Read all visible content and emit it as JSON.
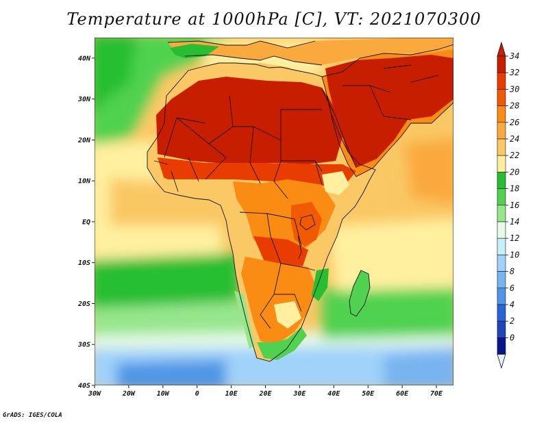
{
  "title": "Temperature at 1000hPa [C], VT: 2021070300",
  "credit": "GrADS: IGES/COLA",
  "map": {
    "lat_labels": [
      "40N",
      "30N",
      "20N",
      "10N",
      "EQ",
      "10S",
      "20S",
      "30S",
      "40S"
    ],
    "lat_values": [
      40,
      30,
      20,
      10,
      0,
      -10,
      -20,
      -30,
      -40
    ],
    "lon_labels": [
      "30W",
      "20W",
      "10W",
      "0",
      "10E",
      "20E",
      "30E",
      "40E",
      "50E",
      "60E",
      "70E"
    ],
    "lon_values": [
      -30,
      -20,
      -10,
      0,
      10,
      20,
      30,
      40,
      50,
      60,
      70
    ],
    "lon_range": [
      -30,
      75
    ],
    "lat_range": [
      -40,
      45
    ],
    "variable": "temperature",
    "level": "1000hPa",
    "units": "C",
    "valid_time": "2021070300"
  },
  "colorbar": {
    "levels": [
      34,
      32,
      30,
      28,
      26,
      24,
      22,
      20,
      18,
      16,
      14,
      12,
      10,
      8,
      6,
      4,
      2,
      0
    ],
    "colors": [
      "#c81e00",
      "#e83c00",
      "#f05a00",
      "#fa8c14",
      "#faaa3c",
      "#fac864",
      "#fff0a0",
      "#28be32",
      "#50d250",
      "#96e68c",
      "#e6fae6",
      "#c8f0fa",
      "#a0d2fa",
      "#78b4f0",
      "#5096e6",
      "#2864d2",
      "#1e46b4",
      "#0a148c"
    ],
    "over_color": "#c81e00",
    "under_color": "#e6f0ff"
  }
}
